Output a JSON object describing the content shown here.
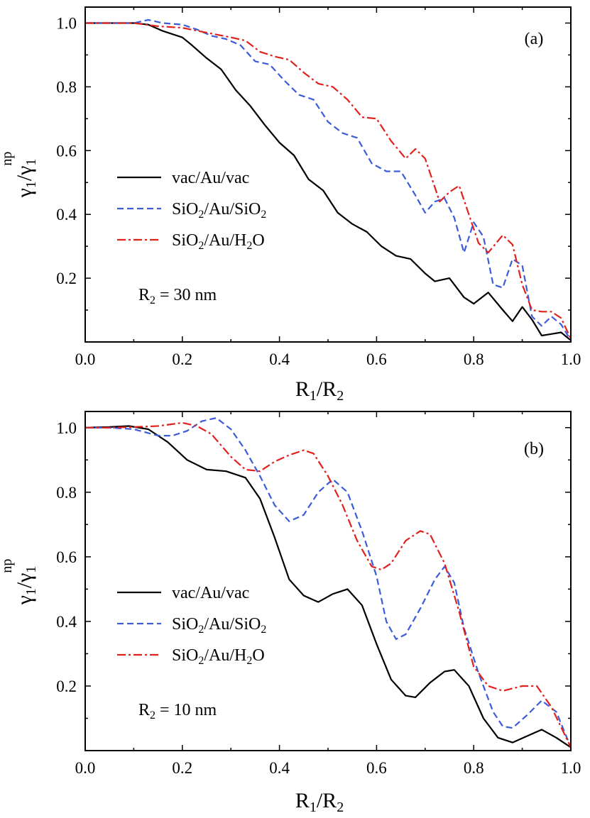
{
  "chart_data": [
    {
      "type": "line",
      "panel_label": "(a)",
      "annotation": {
        "prefix": "R",
        "sub": "2",
        "suffix": " = 30 nm"
      },
      "xlabel": {
        "main1": "R",
        "sub1": "1",
        "slash": "/R",
        "sub2": "2"
      },
      "ylabel": {
        "g1": "γ",
        "sub1": "1",
        "slash": "/γ",
        "sub2": "1",
        "sup2": "np"
      },
      "xlim": [
        0,
        1
      ],
      "ylim": [
        0,
        1.05
      ],
      "xticks": [
        "0.0",
        "0.2",
        "0.4",
        "0.6",
        "0.8",
        "1.0"
      ],
      "yticks": [
        "0.2",
        "0.4",
        "0.6",
        "0.8",
        "1.0"
      ],
      "series": [
        {
          "name": "vac/Au/vac",
          "color": "#000000",
          "dash": "solid",
          "x": [
            0.0,
            0.05,
            0.1,
            0.13,
            0.16,
            0.2,
            0.22,
            0.25,
            0.28,
            0.31,
            0.34,
            0.37,
            0.4,
            0.43,
            0.46,
            0.49,
            0.52,
            0.55,
            0.58,
            0.61,
            0.64,
            0.67,
            0.7,
            0.72,
            0.75,
            0.78,
            0.8,
            0.83,
            0.86,
            0.88,
            0.9,
            0.92,
            0.94,
            0.96,
            0.98,
            1.0
          ],
          "y": [
            1.0,
            1.0,
            1.0,
            0.995,
            0.975,
            0.955,
            0.93,
            0.89,
            0.855,
            0.79,
            0.74,
            0.68,
            0.625,
            0.585,
            0.51,
            0.475,
            0.405,
            0.37,
            0.345,
            0.3,
            0.27,
            0.26,
            0.215,
            0.19,
            0.2,
            0.14,
            0.12,
            0.155,
            0.1,
            0.065,
            0.11,
            0.07,
            0.02,
            0.025,
            0.03,
            0.005
          ]
        },
        {
          "name": "SiO2/Au/SiO2",
          "color": "#3b5bdb",
          "dash": "dashed",
          "label_parts": [
            [
              "SiO",
              false
            ],
            [
              "2",
              true
            ],
            [
              "/Au/SiO",
              false
            ],
            [
              "2",
              true
            ]
          ],
          "x": [
            0.0,
            0.05,
            0.1,
            0.13,
            0.16,
            0.2,
            0.23,
            0.26,
            0.29,
            0.32,
            0.35,
            0.38,
            0.41,
            0.44,
            0.47,
            0.5,
            0.53,
            0.56,
            0.59,
            0.62,
            0.65,
            0.68,
            0.7,
            0.72,
            0.74,
            0.76,
            0.78,
            0.8,
            0.82,
            0.84,
            0.86,
            0.88,
            0.9,
            0.92,
            0.94,
            0.96,
            0.98,
            1.0
          ],
          "y": [
            1.0,
            1.0,
            1.0,
            1.01,
            1.0,
            0.995,
            0.98,
            0.96,
            0.95,
            0.93,
            0.88,
            0.87,
            0.82,
            0.775,
            0.76,
            0.69,
            0.655,
            0.64,
            0.56,
            0.535,
            0.535,
            0.46,
            0.405,
            0.44,
            0.45,
            0.39,
            0.28,
            0.375,
            0.33,
            0.18,
            0.17,
            0.26,
            0.24,
            0.08,
            0.05,
            0.08,
            0.055,
            0.005
          ]
        },
        {
          "name": "SiO2/Au/H2O",
          "color": "#e0211c",
          "dash": "dashdot",
          "label_parts": [
            [
              "SiO",
              false
            ],
            [
              "2",
              true
            ],
            [
              "/Au/H",
              false
            ],
            [
              "2",
              true
            ],
            [
              "O",
              false
            ]
          ],
          "x": [
            0.0,
            0.05,
            0.1,
            0.15,
            0.2,
            0.25,
            0.3,
            0.33,
            0.36,
            0.39,
            0.42,
            0.45,
            0.48,
            0.51,
            0.54,
            0.57,
            0.6,
            0.63,
            0.66,
            0.68,
            0.7,
            0.73,
            0.75,
            0.77,
            0.79,
            0.81,
            0.83,
            0.86,
            0.88,
            0.9,
            0.92,
            0.94,
            0.96,
            0.98,
            1.0
          ],
          "y": [
            1.0,
            1.0,
            1.0,
            0.99,
            0.985,
            0.97,
            0.955,
            0.945,
            0.91,
            0.895,
            0.885,
            0.845,
            0.81,
            0.8,
            0.76,
            0.705,
            0.7,
            0.63,
            0.575,
            0.605,
            0.575,
            0.44,
            0.47,
            0.49,
            0.4,
            0.31,
            0.28,
            0.335,
            0.305,
            0.18,
            0.1,
            0.095,
            0.095,
            0.075,
            0.01
          ]
        }
      ]
    },
    {
      "type": "line",
      "panel_label": "(b)",
      "annotation": {
        "prefix": "R",
        "sub": "2",
        "suffix": " = 10 nm"
      },
      "xlabel": {
        "main1": "R",
        "sub1": "1",
        "slash": "/R",
        "sub2": "2"
      },
      "ylabel": {
        "g1": "γ",
        "sub1": "1",
        "slash": "/γ",
        "sub2": "1",
        "sup2": "np"
      },
      "xlim": [
        0,
        1
      ],
      "ylim": [
        0,
        1.05
      ],
      "xticks": [
        "0.0",
        "0.2",
        "0.4",
        "0.6",
        "0.8",
        "1.0"
      ],
      "yticks": [
        "0.2",
        "0.4",
        "0.6",
        "0.8",
        "1.0"
      ],
      "series": [
        {
          "name": "vac/Au/vac",
          "color": "#000000",
          "dash": "solid",
          "x": [
            0.0,
            0.05,
            0.09,
            0.13,
            0.17,
            0.21,
            0.25,
            0.29,
            0.33,
            0.36,
            0.39,
            0.42,
            0.45,
            0.48,
            0.51,
            0.54,
            0.57,
            0.6,
            0.63,
            0.66,
            0.68,
            0.71,
            0.74,
            0.76,
            0.79,
            0.82,
            0.85,
            0.88,
            0.91,
            0.94,
            0.97,
            1.0
          ],
          "y": [
            1.0,
            1.002,
            1.005,
            0.995,
            0.955,
            0.9,
            0.87,
            0.865,
            0.845,
            0.78,
            0.66,
            0.53,
            0.48,
            0.46,
            0.485,
            0.5,
            0.45,
            0.33,
            0.22,
            0.17,
            0.165,
            0.21,
            0.245,
            0.25,
            0.2,
            0.1,
            0.04,
            0.025,
            0.045,
            0.065,
            0.04,
            0.01
          ]
        },
        {
          "name": "SiO2/Au/SiO2",
          "color": "#3b5bdb",
          "dash": "dashed",
          "label_parts": [
            [
              "SiO",
              false
            ],
            [
              "2",
              true
            ],
            [
              "/Au/SiO",
              false
            ],
            [
              "2",
              true
            ]
          ],
          "x": [
            0.0,
            0.05,
            0.1,
            0.15,
            0.18,
            0.21,
            0.24,
            0.27,
            0.3,
            0.33,
            0.36,
            0.39,
            0.42,
            0.45,
            0.48,
            0.51,
            0.54,
            0.57,
            0.6,
            0.62,
            0.64,
            0.66,
            0.69,
            0.72,
            0.74,
            0.76,
            0.78,
            0.81,
            0.84,
            0.86,
            0.88,
            0.91,
            0.94,
            0.97,
            1.0
          ],
          "y": [
            1.0,
            1.0,
            0.995,
            0.975,
            0.975,
            0.99,
            1.02,
            1.03,
            0.995,
            0.93,
            0.85,
            0.76,
            0.71,
            0.73,
            0.8,
            0.84,
            0.8,
            0.68,
            0.54,
            0.4,
            0.345,
            0.36,
            0.44,
            0.53,
            0.57,
            0.52,
            0.38,
            0.24,
            0.12,
            0.075,
            0.07,
            0.11,
            0.155,
            0.12,
            0.01
          ]
        },
        {
          "name": "SiO2/Au/H2O",
          "color": "#e0211c",
          "dash": "dashdot",
          "label_parts": [
            [
              "SiO",
              false
            ],
            [
              "2",
              true
            ],
            [
              "/Au/H",
              false
            ],
            [
              "2",
              true
            ],
            [
              "O",
              false
            ]
          ],
          "x": [
            0.0,
            0.05,
            0.1,
            0.15,
            0.2,
            0.23,
            0.26,
            0.3,
            0.33,
            0.36,
            0.39,
            0.42,
            0.45,
            0.47,
            0.5,
            0.53,
            0.56,
            0.59,
            0.61,
            0.63,
            0.66,
            0.69,
            0.71,
            0.74,
            0.77,
            0.8,
            0.83,
            0.86,
            0.9,
            0.93,
            0.96,
            1.0
          ],
          "y": [
            1.0,
            1.0,
            1.002,
            1.005,
            1.015,
            1.005,
            0.98,
            0.91,
            0.87,
            0.865,
            0.895,
            0.915,
            0.93,
            0.92,
            0.85,
            0.76,
            0.65,
            0.57,
            0.56,
            0.58,
            0.65,
            0.68,
            0.67,
            0.58,
            0.43,
            0.26,
            0.2,
            0.185,
            0.2,
            0.2,
            0.135,
            0.01
          ]
        }
      ]
    }
  ]
}
